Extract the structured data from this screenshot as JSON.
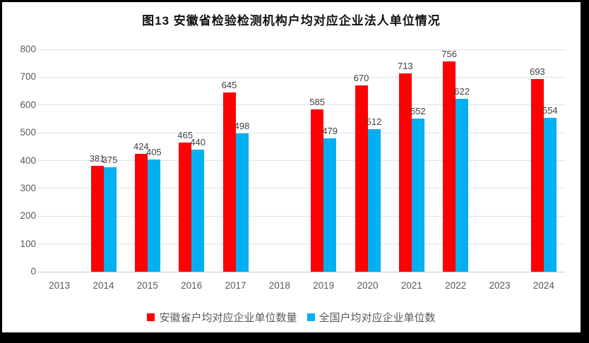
{
  "frame": {
    "border_color": "#000000",
    "background_color": "#ffffff"
  },
  "chart_data": {
    "type": "bar",
    "title": "图13  安徽省检验检测机构户均对应企业法人单位情况",
    "categories": [
      "2013",
      "2014",
      "2015",
      "2016",
      "2017",
      "2018",
      "2019",
      "2020",
      "2021",
      "2022",
      "2023",
      "2024"
    ],
    "series": [
      {
        "name": "安徽省户均对应企业单位数量",
        "color": "#ff0000",
        "values": [
          null,
          381,
          424,
          465,
          645,
          null,
          585,
          670,
          713,
          756,
          null,
          693
        ]
      },
      {
        "name": "全国户均对应企业单位数",
        "color": "#00b0f0",
        "values": [
          null,
          375,
          405,
          440,
          498,
          null,
          479,
          512,
          552,
          622,
          null,
          554
        ]
      }
    ],
    "ylim": [
      0,
      800
    ],
    "ytick_step": 100,
    "yticks": [
      0,
      100,
      200,
      300,
      400,
      500,
      600,
      700,
      800
    ],
    "grid": true,
    "legend_position": "bottom",
    "gridline_color": "#e2e2e2",
    "axis_label_color": "#595959",
    "data_label_color": "#404040"
  }
}
